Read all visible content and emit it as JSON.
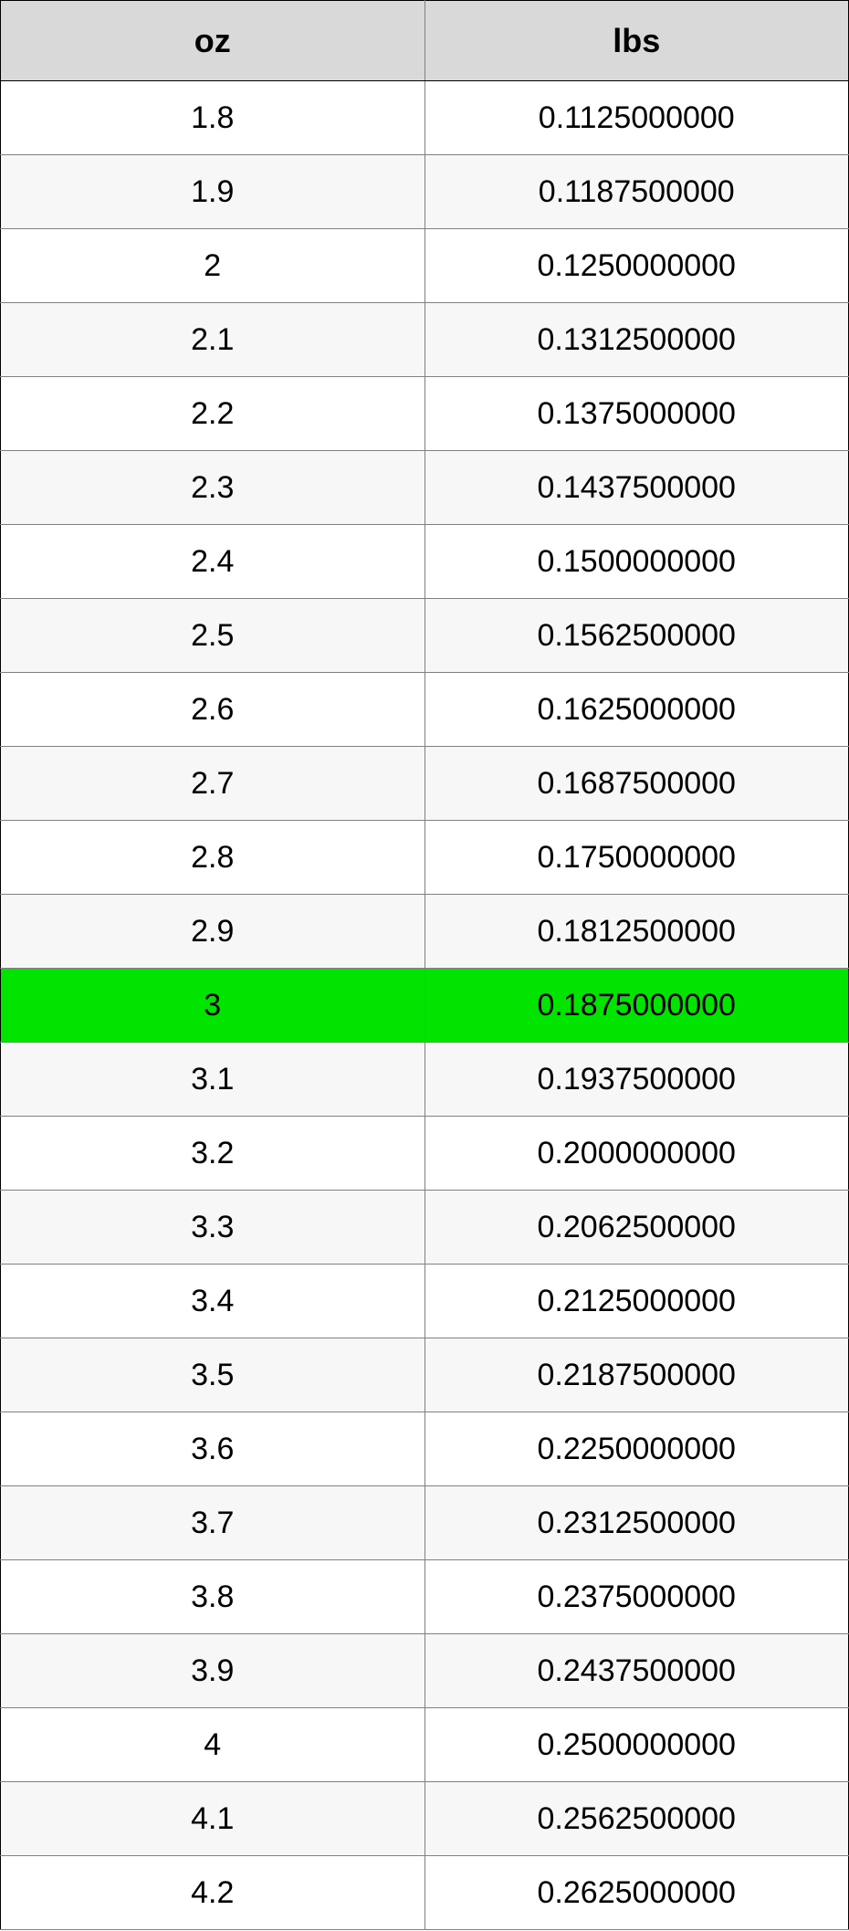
{
  "table": {
    "columns": [
      "oz",
      "lbs"
    ],
    "header_bg": "#d9d9d9",
    "header_border": "#808080",
    "row_border": "#808080",
    "row_bg_alt": [
      "#ffffff",
      "#f7f7f7"
    ],
    "highlight_bg": "#00e400",
    "highlight_index": 12,
    "font_family": "Arial",
    "header_fontsize": 36,
    "cell_fontsize": 34,
    "rows": [
      [
        "1.8",
        "0.1125000000"
      ],
      [
        "1.9",
        "0.1187500000"
      ],
      [
        "2",
        "0.1250000000"
      ],
      [
        "2.1",
        "0.1312500000"
      ],
      [
        "2.2",
        "0.1375000000"
      ],
      [
        "2.3",
        "0.1437500000"
      ],
      [
        "2.4",
        "0.1500000000"
      ],
      [
        "2.5",
        "0.1562500000"
      ],
      [
        "2.6",
        "0.1625000000"
      ],
      [
        "2.7",
        "0.1687500000"
      ],
      [
        "2.8",
        "0.1750000000"
      ],
      [
        "2.9",
        "0.1812500000"
      ],
      [
        "3",
        "0.1875000000"
      ],
      [
        "3.1",
        "0.1937500000"
      ],
      [
        "3.2",
        "0.2000000000"
      ],
      [
        "3.3",
        "0.2062500000"
      ],
      [
        "3.4",
        "0.2125000000"
      ],
      [
        "3.5",
        "0.2187500000"
      ],
      [
        "3.6",
        "0.2250000000"
      ],
      [
        "3.7",
        "0.2312500000"
      ],
      [
        "3.8",
        "0.2375000000"
      ],
      [
        "3.9",
        "0.2437500000"
      ],
      [
        "4",
        "0.2500000000"
      ],
      [
        "4.1",
        "0.2562500000"
      ],
      [
        "4.2",
        "0.2625000000"
      ]
    ]
  }
}
